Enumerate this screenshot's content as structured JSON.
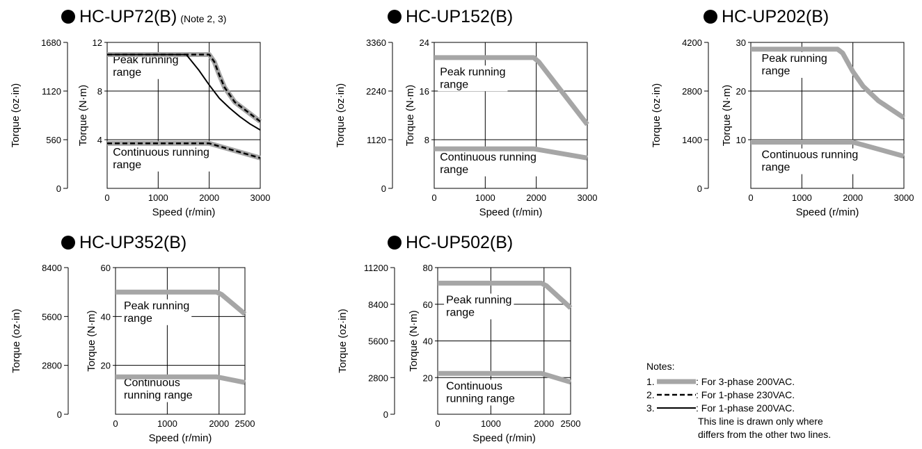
{
  "colors": {
    "phase3_200vac": "#a6a6a6",
    "phase1_230vac": "#000000",
    "phase1_200vac": "#000000",
    "grid": "#000000"
  },
  "chart_data": [
    {
      "type": "line",
      "title": "HC-UP72(B)",
      "title_note": "(Note 2, 3)",
      "xlabel": "Speed (r/min)",
      "ylabel": "Torque (N·m)",
      "ylabel2": "Torque (oz·in)",
      "xlim": [
        0,
        3000
      ],
      "ylim": [
        0,
        12
      ],
      "ylim2": [
        0,
        1680
      ],
      "x_ticks": [
        0,
        1000,
        2000,
        3000
      ],
      "y_ticks": [
        4,
        8,
        12
      ],
      "y2_ticks": [
        0,
        560,
        1120,
        1680
      ],
      "grid": true,
      "series": [
        {
          "style": "3-phase",
          "x": [
            0,
            2000,
            2100,
            2200,
            2300,
            2500,
            3000
          ],
          "y": [
            11.0,
            11.0,
            10.4,
            9.3,
            8.3,
            7.1,
            5.5
          ]
        },
        {
          "style": "1-phase-230",
          "x": [
            0,
            2000,
            2100,
            2200,
            2300,
            2500,
            3000
          ],
          "y": [
            11.0,
            11.0,
            10.4,
            9.3,
            8.3,
            7.1,
            5.5
          ]
        },
        {
          "style": "1-phase-200",
          "x": [
            0,
            1550,
            1800,
            2000,
            2200,
            2400,
            2600,
            2800,
            3000
          ],
          "y": [
            11.0,
            11.0,
            9.7,
            8.5,
            7.4,
            6.6,
            5.9,
            5.3,
            4.8
          ]
        },
        {
          "style": "3-phase",
          "x": [
            0,
            2000,
            3000
          ],
          "y": [
            3.7,
            3.7,
            2.5
          ]
        },
        {
          "style": "1-phase-230",
          "x": [
            0,
            2000,
            3000
          ],
          "y": [
            3.7,
            3.7,
            2.5
          ]
        }
      ],
      "annotations": [
        {
          "lines": [
            "Peak running",
            "range"
          ],
          "x": 30,
          "y": 10.3
        },
        {
          "lines": [
            "Continuous running",
            "range"
          ],
          "x": 30,
          "y": 2.7
        }
      ]
    },
    {
      "type": "line",
      "title": "HC-UP152(B)",
      "xlabel": "Speed (r/min)",
      "ylabel": "Torque (N·m)",
      "ylabel2": "Torque (oz·in)",
      "xlim": [
        0,
        3000
      ],
      "ylim": [
        0,
        24
      ],
      "ylim2": [
        0,
        3360
      ],
      "x_ticks": [
        0,
        1000,
        2000,
        3000
      ],
      "y_ticks": [
        8,
        16,
        24
      ],
      "y2_ticks": [
        0,
        1120,
        2240,
        3360
      ],
      "grid": true,
      "series": [
        {
          "style": "3-phase",
          "x": [
            0,
            1950,
            2050,
            3000
          ],
          "y": [
            21.5,
            21.5,
            20.8,
            10.5
          ]
        },
        {
          "style": "3-phase",
          "x": [
            0,
            1950,
            3000
          ],
          "y": [
            6.5,
            6.5,
            5.0
          ]
        }
      ],
      "annotations": [
        {
          "lines": [
            "Peak running",
            "range"
          ],
          "x": 30,
          "y": 18.6
        },
        {
          "lines": [
            "Continuous running",
            "range"
          ],
          "x": 30,
          "y": 4.6
        }
      ]
    },
    {
      "type": "line",
      "title": "HC-UP202(B)",
      "xlabel": "Speed (r/min)",
      "ylabel": "Torque (N·m)",
      "ylabel2": "Torque (oz·in)",
      "xlim": [
        0,
        3000
      ],
      "ylim": [
        0,
        30
      ],
      "ylim2": [
        0,
        4200
      ],
      "x_ticks": [
        0,
        1000,
        2000,
        3000
      ],
      "y_ticks": [
        10,
        20,
        30
      ],
      "y2_ticks": [
        0,
        1400,
        2800,
        4200
      ],
      "grid": true,
      "series": [
        {
          "style": "3-phase",
          "x": [
            0,
            1700,
            1800,
            1900,
            2000,
            2200,
            2500,
            3000
          ],
          "y": [
            28.6,
            28.6,
            27.8,
            25.9,
            24.0,
            21.0,
            18.0,
            14.5
          ]
        },
        {
          "style": "3-phase",
          "x": [
            0,
            2000,
            3000
          ],
          "y": [
            9.5,
            9.5,
            6.6
          ]
        }
      ],
      "annotations": [
        {
          "lines": [
            "Peak running",
            "range"
          ],
          "x": 130,
          "y": 26.0
        },
        {
          "lines": [
            "Continuous running",
            "range"
          ],
          "x": 130,
          "y": 6.2
        }
      ]
    },
    {
      "type": "line",
      "title": "HC-UP352(B)",
      "xlabel": "Speed (r/min)",
      "ylabel": "Torque (N·m)",
      "ylabel2": "Torque (oz·in)",
      "xlim": [
        0,
        2500
      ],
      "ylim": [
        0,
        60
      ],
      "ylim2": [
        0,
        8400
      ],
      "x_ticks": [
        0,
        1000,
        2000,
        2500
      ],
      "x_tick_labels": [
        "0",
        "1000",
        "2000",
        "2500"
      ],
      "y_ticks": [
        20,
        40,
        60
      ],
      "y2_ticks": [
        0,
        2800,
        5600,
        8400
      ],
      "grid": true,
      "grid_x": [
        1000,
        2000
      ],
      "series": [
        {
          "style": "3-phase",
          "x": [
            0,
            1950,
            2050,
            2500
          ],
          "y": [
            50.0,
            50.0,
            49.0,
            41.0
          ]
        },
        {
          "style": "3-phase",
          "x": [
            0,
            1950,
            2500
          ],
          "y": [
            15.3,
            15.3,
            13.0
          ]
        }
      ],
      "annotations": [
        {
          "lines": [
            "Peak running",
            "range"
          ],
          "x": 80,
          "y": 43.0
        },
        {
          "lines": [
            "Continuous",
            "running range"
          ],
          "x": 80,
          "y": 11.5
        }
      ]
    },
    {
      "type": "line",
      "title": "HC-UP502(B)",
      "xlabel": "Speed (r/min)",
      "ylabel": "Torque (N·m)",
      "ylabel2": "Torque (oz·in)",
      "xlim": [
        0,
        2500
      ],
      "ylim": [
        0,
        80
      ],
      "ylim2": [
        0,
        11200
      ],
      "x_ticks": [
        0,
        1000,
        2000,
        2500
      ],
      "y_ticks": [
        20,
        40,
        60,
        80
      ],
      "y2_ticks": [
        0,
        2800,
        5600,
        8400,
        11200
      ],
      "grid": true,
      "grid_x": [
        1000,
        2000
      ],
      "series": [
        {
          "style": "3-phase",
          "x": [
            0,
            1950,
            2050,
            2500
          ],
          "y": [
            71.5,
            71.5,
            70.0,
            58.0
          ]
        },
        {
          "style": "3-phase",
          "x": [
            0,
            1950,
            2500
          ],
          "y": [
            22.3,
            22.3,
            17.5
          ]
        }
      ],
      "annotations": [
        {
          "lines": [
            "Peak running",
            "range"
          ],
          "x": 80,
          "y": 60.5
        },
        {
          "lines": [
            "Continuous",
            "running range"
          ],
          "x": 80,
          "y": 13.5
        }
      ]
    }
  ],
  "notes": {
    "heading": "Notes:",
    "items": [
      {
        "num": "1.",
        "style": "3-phase",
        "text": ": For 3-phase 200VAC."
      },
      {
        "num": "2.",
        "style": "1-phase-230",
        "text": ": For 1-phase 230VAC."
      },
      {
        "num": "3.",
        "style": "1-phase-200",
        "text": ": For 1-phase 200VAC."
      }
    ],
    "extra_lines": [
      "This line is drawn only where",
      "differs from the other two lines."
    ]
  }
}
